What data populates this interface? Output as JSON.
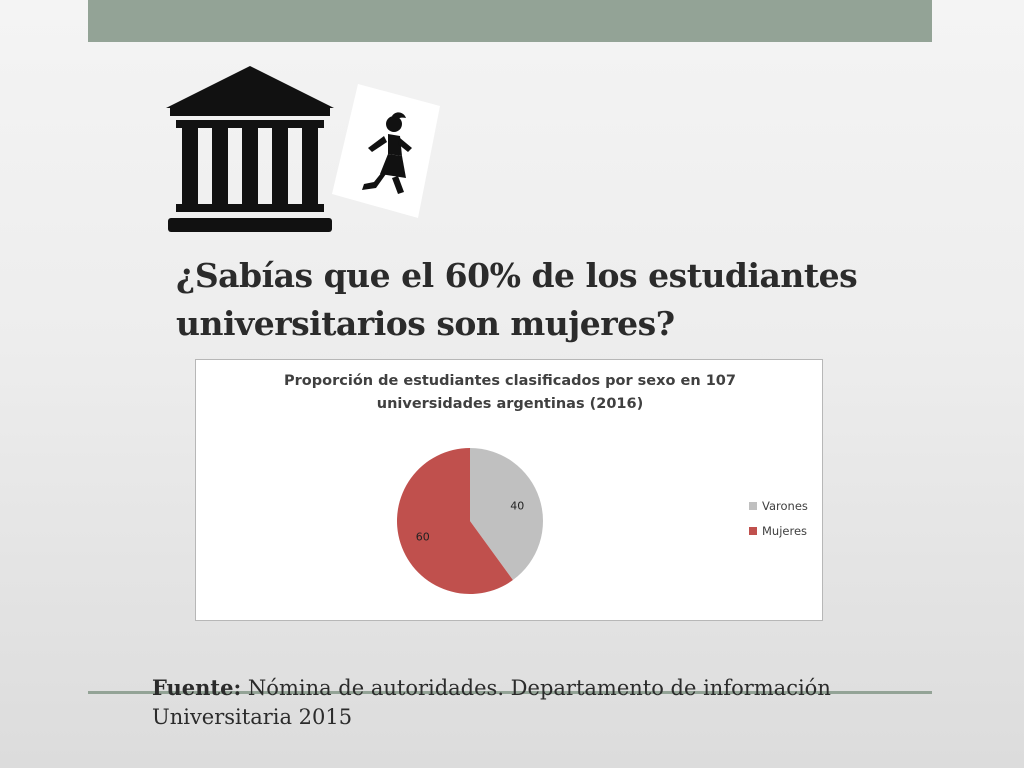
{
  "slide": {
    "headline": "¿Sabías que el 60% de los estudiantes universitarios son mujeres?",
    "source_label": "Fuente:",
    "source_text": " Nómina de autoridades. Departamento de información Universitaria 2015"
  },
  "icons": {
    "building": "university-building-icon",
    "runner": "woman-running-icon"
  },
  "colors": {
    "top_bar": "#93a396",
    "varones": "#c0c0c0",
    "mujeres": "#c0504d"
  },
  "chart_data": {
    "type": "pie",
    "title": "Proporción de estudiantes clasificados por sexo en 107 universidades argentinas (2016)",
    "categories": [
      "Varones",
      "Mujeres"
    ],
    "values": [
      40,
      60
    ],
    "data_labels": [
      "40",
      "60"
    ],
    "colors": [
      "#c0c0c0",
      "#c0504d"
    ],
    "legend_position": "right"
  }
}
